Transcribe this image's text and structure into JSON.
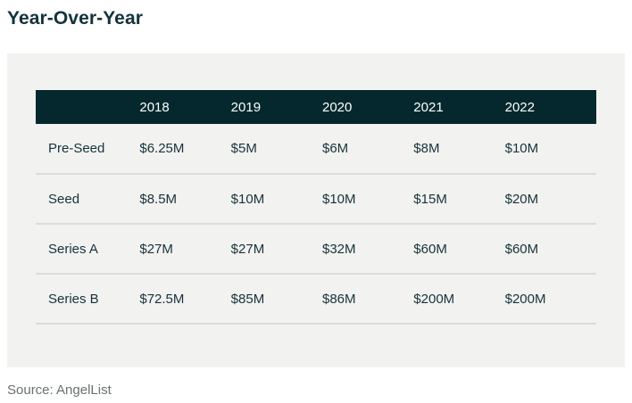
{
  "title": "Year-Over-Year",
  "footer": {
    "source": "Source: AngelList"
  },
  "colors": {
    "header_bg": "#04282d",
    "header_text": "#ffffff",
    "card_bg": "#f2f2f0",
    "body_text": "#17333b",
    "divider": "#dcdcd8",
    "source_text": "#68716f"
  },
  "chart_data": {
    "type": "table",
    "title": "Year-Over-Year",
    "columns": [
      "2018",
      "2019",
      "2020",
      "2021",
      "2022"
    ],
    "rows": [
      {
        "label": "Pre-Seed",
        "values": [
          "$6.25M",
          "$5M",
          "$6M",
          "$8M",
          "$10M"
        ]
      },
      {
        "label": "Seed",
        "values": [
          "$8.5M",
          "$10M",
          "$10M",
          "$15M",
          "$20M"
        ]
      },
      {
        "label": "Series A",
        "values": [
          "$27M",
          "$27M",
          "$32M",
          "$60M",
          "$60M"
        ]
      },
      {
        "label": "Series B",
        "values": [
          "$72.5M",
          "$85M",
          "$86M",
          "$200M",
          "$200M"
        ]
      }
    ],
    "source": "Source: AngelList",
    "layout": {
      "header_style": "dark-band",
      "grid": "horizontal-dividers-only"
    }
  }
}
